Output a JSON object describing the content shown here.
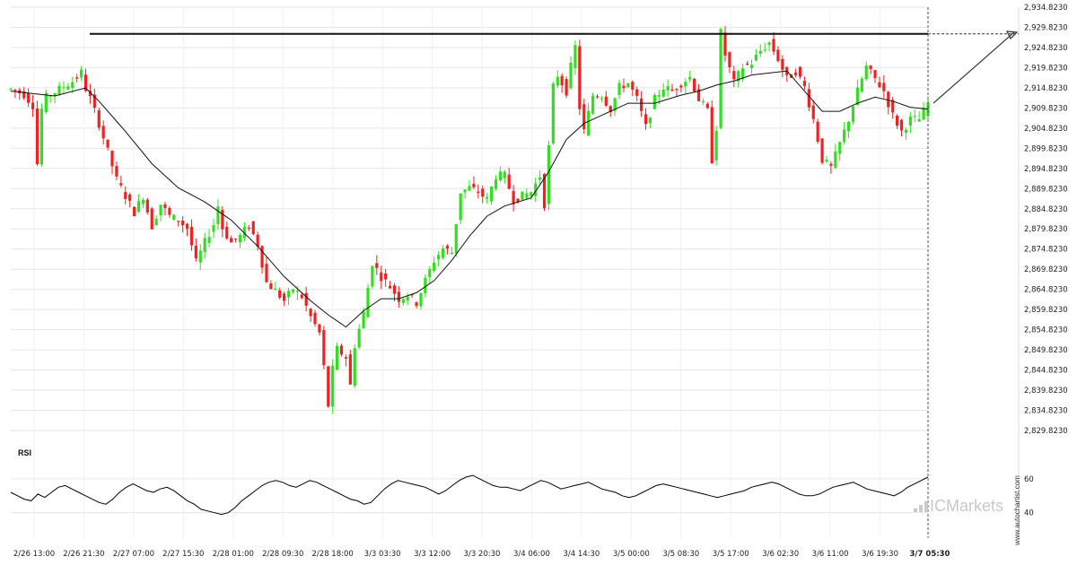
{
  "chart_data": [
    {
      "type": "candlestick",
      "title": "",
      "y_ticks": [
        "2,934.8230",
        "2,929.8230",
        "2,924.8230",
        "2,919.8230",
        "2,914.8230",
        "2,909.8230",
        "2,904.8230",
        "2,899.8230",
        "2,894.8230",
        "2,889.8230",
        "2,884.8230",
        "2,879.8230",
        "2,874.8230",
        "2,869.8230",
        "2,864.8230",
        "2,859.8230",
        "2,854.8230",
        "2,849.8230",
        "2,844.8230",
        "2,839.8230",
        "2,834.8230",
        "2,829.8230"
      ],
      "ylim": [
        2829.823,
        2934.823
      ],
      "x_ticks": [
        "2/26 13:00",
        "2/26 21:30",
        "2/27 07:00",
        "2/27 15:30",
        "2/28 01:00",
        "2/28 09:30",
        "2/28 18:00",
        "3/3 03:30",
        "3/3 12:00",
        "3/3 20:30",
        "3/4 06:00",
        "3/4 14:30",
        "3/5 00:00",
        "3/5 08:30",
        "3/5 17:00",
        "3/6 02:30",
        "3/6 11:00",
        "3/6 19:30",
        "3/7 05:30"
      ],
      "grid": true,
      "resistance_level": 2928.2,
      "projection_target": 2928.6,
      "close_path": [
        [
          0,
          2914.5
        ],
        [
          3,
          2913.2
        ],
        [
          5,
          2910.5
        ],
        [
          6,
          2896
        ],
        [
          7,
          2909.5
        ],
        [
          8,
          2912.5
        ],
        [
          10,
          2913.8
        ],
        [
          12,
          2915.2
        ],
        [
          14,
          2916.4
        ],
        [
          16,
          2918.6
        ],
        [
          17,
          2914.6
        ],
        [
          18,
          2912.2
        ],
        [
          20,
          2906
        ],
        [
          22,
          2899
        ],
        [
          24,
          2892
        ],
        [
          26,
          2888
        ],
        [
          28,
          2884
        ],
        [
          30,
          2888
        ],
        [
          32,
          2880.5
        ],
        [
          34,
          2886
        ],
        [
          36,
          2883
        ],
        [
          38,
          2882
        ],
        [
          40,
          2880
        ],
        [
          42,
          2871.5
        ],
        [
          44,
          2876.5
        ],
        [
          46,
          2881
        ],
        [
          47,
          2885.5
        ],
        [
          48,
          2880
        ],
        [
          50,
          2876.4
        ],
        [
          52,
          2878
        ],
        [
          54,
          2880.8
        ],
        [
          56,
          2876
        ],
        [
          58,
          2866.5
        ],
        [
          60,
          2864.5
        ],
        [
          62,
          2862
        ],
        [
          64,
          2865
        ],
        [
          66,
          2863
        ],
        [
          68,
          2858
        ],
        [
          70,
          2854
        ],
        [
          71,
          2845.5
        ],
        [
          72,
          2836
        ],
        [
          73,
          2845
        ],
        [
          74,
          2850
        ],
        [
          76,
          2848
        ],
        [
          77,
          2841
        ],
        [
          78,
          2851
        ],
        [
          80,
          2859
        ],
        [
          82,
          2871.5
        ],
        [
          84,
          2868
        ],
        [
          86,
          2865.5
        ],
        [
          88,
          2862.5
        ],
        [
          90,
          2863.5
        ],
        [
          92,
          2861.5
        ],
        [
          94,
          2867
        ],
        [
          96,
          2872
        ],
        [
          98,
          2875
        ],
        [
          100,
          2874
        ],
        [
          102,
          2889
        ],
        [
          104,
          2890
        ],
        [
          106,
          2889
        ],
        [
          108,
          2887
        ],
        [
          110,
          2893
        ],
        [
          112,
          2893
        ],
        [
          114,
          2887
        ],
        [
          116,
          2888
        ],
        [
          118,
          2889
        ],
        [
          120,
          2893
        ],
        [
          121,
          2886
        ],
        [
          122,
          2900
        ],
        [
          123,
          2915
        ],
        [
          124,
          2918
        ],
        [
          126,
          2914
        ],
        [
          127,
          2920
        ],
        [
          128,
          2925
        ],
        [
          129,
          2910
        ],
        [
          130,
          2904
        ],
        [
          132,
          2913
        ],
        [
          134,
          2913
        ],
        [
          136,
          2909.5
        ],
        [
          138,
          2915
        ],
        [
          140,
          2916
        ],
        [
          142,
          2912
        ],
        [
          144,
          2905
        ],
        [
          146,
          2912
        ],
        [
          148,
          2915
        ],
        [
          150,
          2914
        ],
        [
          152,
          2916
        ],
        [
          154,
          2917.5
        ],
        [
          156,
          2912
        ],
        [
          158,
          2909
        ],
        [
          159,
          2897
        ],
        [
          160,
          2905
        ],
        [
          161,
          2928.5
        ],
        [
          162,
          2923
        ],
        [
          164,
          2916
        ],
        [
          166,
          2920
        ],
        [
          168,
          2921
        ],
        [
          170,
          2924
        ],
        [
          172,
          2926
        ],
        [
          174,
          2922
        ],
        [
          176,
          2917
        ],
        [
          178,
          2919
        ],
        [
          180,
          2915
        ],
        [
          182,
          2907
        ],
        [
          184,
          2897
        ],
        [
          186,
          2895
        ],
        [
          188,
          2901
        ],
        [
          190,
          2907
        ],
        [
          192,
          2914
        ],
        [
          194,
          2920
        ],
        [
          196,
          2917
        ],
        [
          198,
          2914
        ],
        [
          200,
          2908
        ],
        [
          202,
          2904
        ],
        [
          204,
          2907
        ],
        [
          206,
          2907
        ],
        [
          208,
          2911
        ]
      ],
      "sma_path": [
        [
          0,
          2914
        ],
        [
          10,
          2912.8
        ],
        [
          17,
          2914.8
        ],
        [
          20,
          2911.5
        ],
        [
          26,
          2904
        ],
        [
          32,
          2896
        ],
        [
          38,
          2890
        ],
        [
          44,
          2886.5
        ],
        [
          50,
          2882
        ],
        [
          56,
          2875.5
        ],
        [
          62,
          2868
        ],
        [
          68,
          2862
        ],
        [
          72,
          2858.5
        ],
        [
          76,
          2855.5
        ],
        [
          80,
          2859.5
        ],
        [
          84,
          2862.5
        ],
        [
          88,
          2862.5
        ],
        [
          92,
          2864
        ],
        [
          96,
          2867
        ],
        [
          100,
          2872
        ],
        [
          104,
          2878
        ],
        [
          108,
          2883
        ],
        [
          112,
          2885.5
        ],
        [
          118,
          2887.5
        ],
        [
          122,
          2894
        ],
        [
          126,
          2902
        ],
        [
          130,
          2906
        ],
        [
          134,
          2908
        ],
        [
          140,
          2911
        ],
        [
          146,
          2911
        ],
        [
          152,
          2913
        ],
        [
          156,
          2914
        ],
        [
          160,
          2915.5
        ],
        [
          164,
          2916.5
        ],
        [
          168,
          2918
        ],
        [
          172,
          2918.5
        ],
        [
          176,
          2919
        ],
        [
          180,
          2914
        ],
        [
          184,
          2909
        ],
        [
          188,
          2909
        ],
        [
          192,
          2911
        ],
        [
          196,
          2912.5
        ],
        [
          200,
          2911.5
        ],
        [
          204,
          2910
        ],
        [
          208,
          2909.5
        ]
      ]
    },
    {
      "type": "line",
      "title": "RSI",
      "y_ticks": [
        "60",
        "40"
      ],
      "ylim": [
        25,
        70
      ],
      "values": [
        52,
        50,
        48,
        47,
        51,
        49,
        52,
        55,
        56,
        54,
        52,
        50,
        48,
        46,
        45,
        48,
        52,
        55,
        57,
        55,
        53,
        52,
        54,
        55,
        53,
        50,
        47,
        45,
        42,
        41,
        40,
        39,
        40,
        43,
        47,
        50,
        53,
        56,
        58,
        59,
        58,
        56,
        55,
        57,
        59,
        58,
        56,
        54,
        52,
        50,
        48,
        47,
        45,
        46,
        50,
        54,
        57,
        59,
        58,
        57,
        56,
        55,
        53,
        51,
        53,
        56,
        59,
        61,
        62,
        60,
        58,
        56,
        55,
        55,
        54,
        53,
        55,
        57,
        59,
        58,
        56,
        54,
        55,
        56,
        57,
        58,
        56,
        54,
        53,
        52,
        50,
        49,
        50,
        52,
        54,
        56,
        57,
        56,
        55,
        54,
        53,
        52,
        51,
        50,
        49,
        50,
        51,
        52,
        53,
        55,
        56,
        57,
        58,
        57,
        55,
        53,
        51,
        50,
        50,
        51,
        53,
        55,
        56,
        57,
        58,
        56,
        54,
        53,
        52,
        51,
        50,
        52,
        55,
        57,
        59,
        61
      ]
    }
  ],
  "watermark": "ICMarkets",
  "side_text": "www.autochartist.com",
  "colors": {
    "up": "#33dd22",
    "down": "#ee2222",
    "level": "#111111",
    "sma": "#111111",
    "grid": "#e6e6e6",
    "projection": "#333333"
  }
}
